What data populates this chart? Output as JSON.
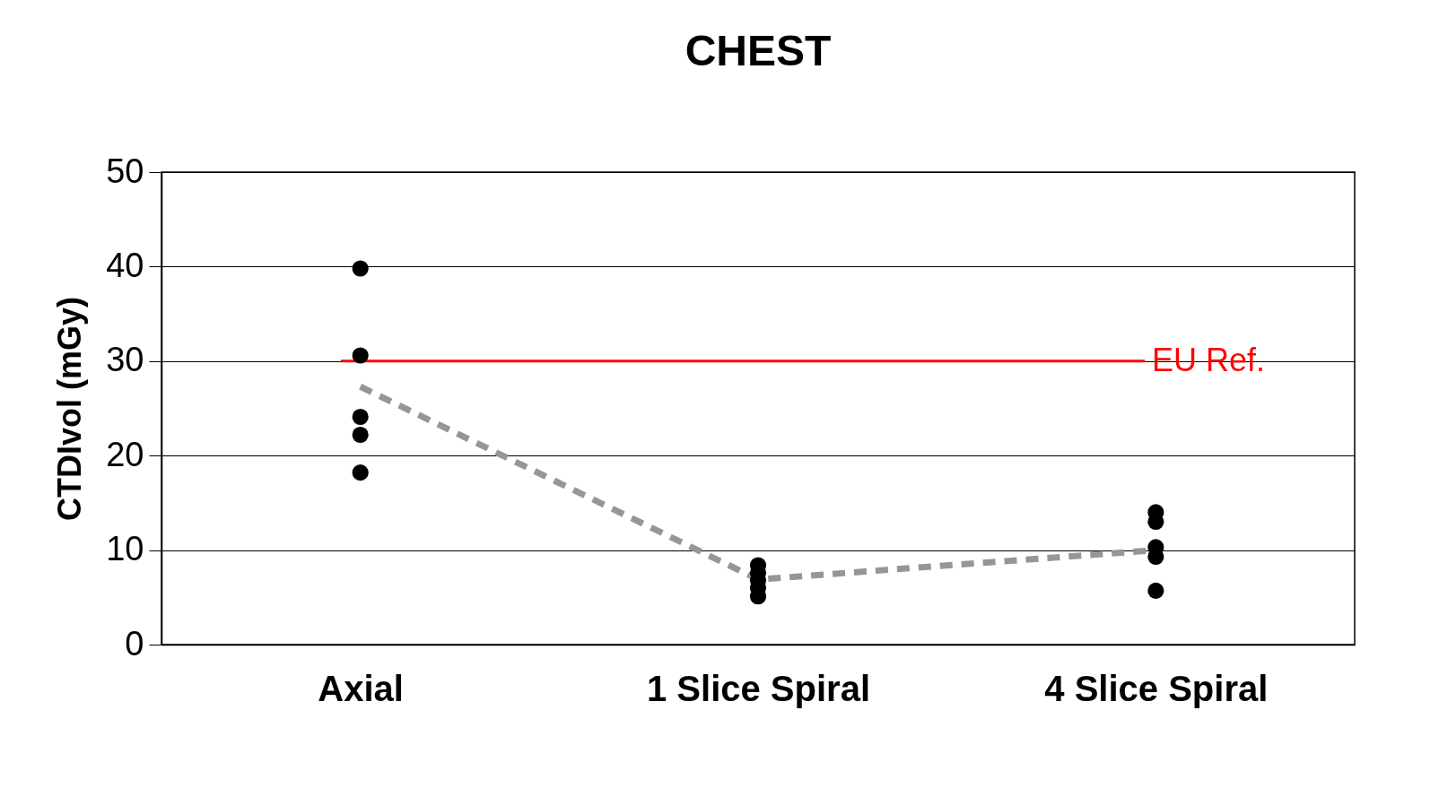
{
  "chart_data": {
    "type": "scatter",
    "title": "CHEST",
    "ylabel": "CTDIvol (mGy)",
    "categories": [
      "Axial",
      "1 Slice Spiral",
      "4 Slice Spiral"
    ],
    "series": [
      {
        "color": "#000000",
        "marker": "circle",
        "x": [
          "Axial",
          "Axial",
          "Axial",
          "Axial",
          "Axial",
          "1 Slice Spiral",
          "1 Slice Spiral",
          "1 Slice Spiral",
          "1 Slice Spiral",
          "1 Slice Spiral",
          "4 Slice Spiral",
          "4 Slice Spiral",
          "4 Slice Spiral",
          "4 Slice Spiral",
          "4 Slice Spiral"
        ],
        "values": [
          39.8,
          30.6,
          24.1,
          22.2,
          18.2,
          8.4,
          7.6,
          6.8,
          6.0,
          5.1,
          14.0,
          13.0,
          10.3,
          9.3,
          5.7
        ]
      },
      {
        "type": "line",
        "color": "#969696",
        "line_style": "dashed",
        "values": [
          27.3,
          6.9,
          10.0
        ]
      }
    ],
    "ylim": [
      0,
      50
    ],
    "yticks": [
      0,
      10,
      20,
      30,
      40,
      50
    ],
    "grid": "y",
    "ref_lines": [
      {
        "axis": "y",
        "value": 30,
        "label": "EU Ref.",
        "color": "#ff0000"
      }
    ]
  }
}
